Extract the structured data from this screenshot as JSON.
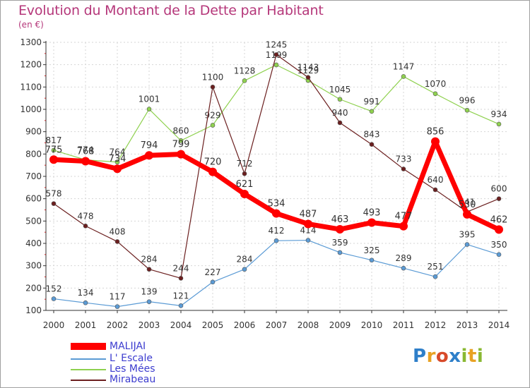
{
  "title": "Evolution du Montant de la Dette par Habitant",
  "subtitle": "(en €)",
  "logo": {
    "text": "Proxiti",
    "letters": [
      {
        "ch": "P",
        "color": "#2e7fc9"
      },
      {
        "ch": "r",
        "color": "#e8a224"
      },
      {
        "ch": "o",
        "color": "#d84a2a"
      },
      {
        "ch": "x",
        "color": "#2e7fc9"
      },
      {
        "ch": "i",
        "color": "#8ab833"
      },
      {
        "ch": "t",
        "color": "#e8a224"
      },
      {
        "ch": "i",
        "color": "#8ab833"
      }
    ]
  },
  "chart_data": {
    "type": "line",
    "title": "Evolution du Montant de la Dette par Habitant",
    "subtitle": "(en €)",
    "xlabel": "",
    "ylabel": "",
    "ylim": [
      100,
      1300
    ],
    "yticks": [
      100,
      200,
      300,
      400,
      500,
      600,
      700,
      800,
      900,
      1000,
      1100,
      1200,
      1300
    ],
    "categories": [
      "2000",
      "2001",
      "2002",
      "2003",
      "2004",
      "2005",
      "2006",
      "2007",
      "2008",
      "2009",
      "2010",
      "2011",
      "2012",
      "2013",
      "2014"
    ],
    "grid": true,
    "legend": "bottom-left",
    "series": [
      {
        "name": "L' Escale",
        "color": "#5b9bd5",
        "values": [
          152,
          134,
          117,
          139,
          121,
          227,
          284,
          412,
          414,
          359,
          325,
          289,
          251,
          395,
          350
        ]
      },
      {
        "name": "Les Mées",
        "color": "#8fd14f",
        "values": [
          817,
          774,
          764,
          1001,
          860,
          929,
          1128,
          1199,
          1129,
          1045,
          991,
          1147,
          1070,
          996,
          934
        ]
      },
      {
        "name": "Mirabeau",
        "color": "#6b1f1f",
        "values": [
          578,
          478,
          408,
          284,
          244,
          1100,
          712,
          1245,
          1143,
          940,
          843,
          733,
          640,
          541,
          600
        ]
      },
      {
        "name": "MALIJAI",
        "color": "#ff0000",
        "values": [
          775,
          768,
          734,
          794,
          799,
          720,
          621,
          534,
          487,
          463,
          493,
          477,
          856,
          530,
          462
        ]
      }
    ],
    "value_labels": {
      "L' Escale": [
        "152",
        "134",
        "117",
        "139",
        "121",
        "227",
        "284",
        "412",
        "414",
        "359",
        "325",
        "289",
        "251",
        "395",
        "350"
      ],
      "Les Mées": [
        "817",
        "774",
        "764",
        "1001",
        "860",
        "929",
        "1128",
        "1199",
        "1129",
        "1045",
        "991",
        "1147",
        "1070",
        "996",
        "934"
      ],
      "Mirabeau": [
        "578",
        "478",
        "408",
        "284",
        "244",
        "1100",
        "712",
        "1245",
        "1143",
        "940",
        "843",
        "733",
        "640",
        "541",
        "600"
      ],
      "MALIJAI": [
        "775",
        "768",
        "734",
        "794",
        "799",
        "720",
        "621",
        "534",
        "487",
        "463",
        "493",
        "477",
        "856",
        "530",
        "462"
      ]
    },
    "legend_order": [
      "MALIJAI",
      "L' Escale",
      "Les Mées",
      "Mirabeau"
    ]
  }
}
